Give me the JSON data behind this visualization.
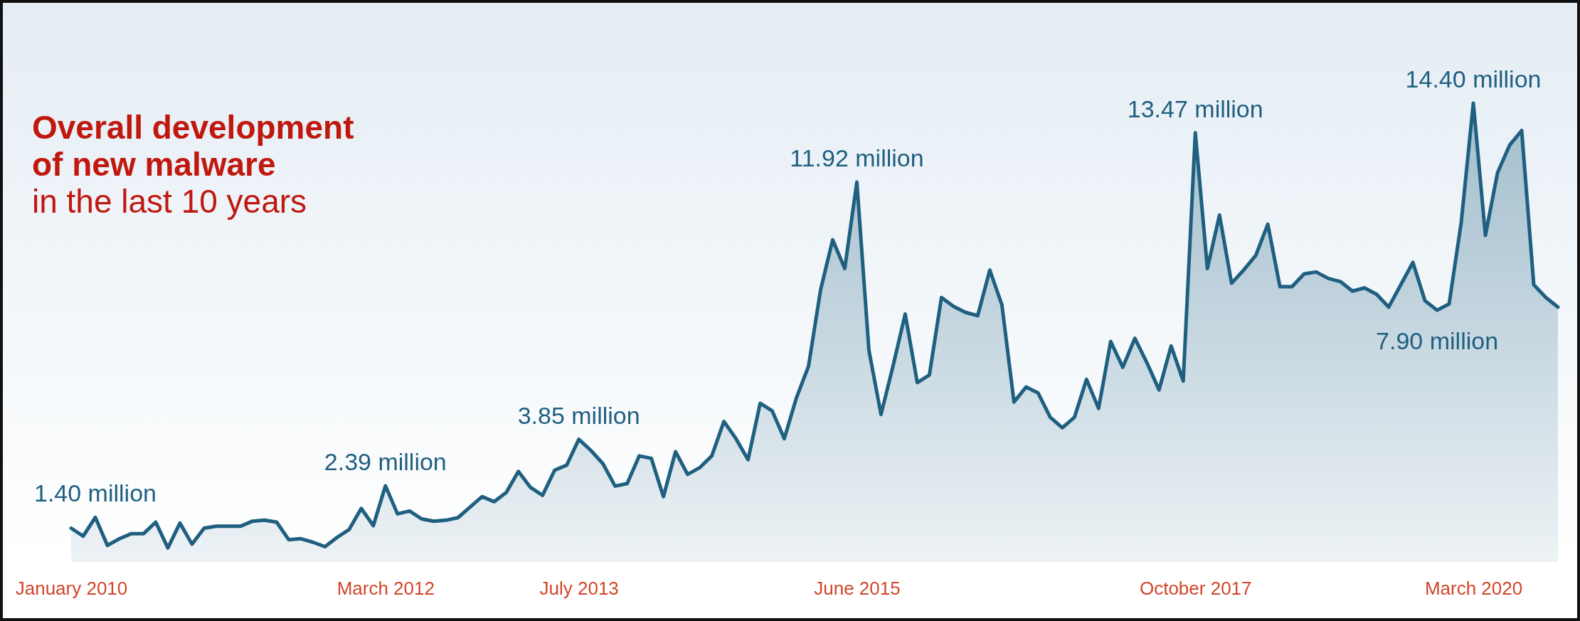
{
  "chart_data": {
    "type": "area",
    "title": "Overall development of new malware",
    "subtitle": "in the last 10 years",
    "categories": [
      "January 2010",
      null,
      null,
      null,
      null,
      null,
      null,
      null,
      null,
      null,
      null,
      null,
      null,
      null,
      null,
      null,
      null,
      null,
      null,
      null,
      null,
      null,
      null,
      null,
      null,
      null,
      "March 2012",
      null,
      null,
      null,
      null,
      null,
      null,
      null,
      null,
      null,
      null,
      null,
      null,
      null,
      null,
      null,
      "July 2013",
      null,
      null,
      null,
      null,
      null,
      null,
      null,
      null,
      null,
      null,
      null,
      null,
      null,
      null,
      null,
      null,
      null,
      null,
      null,
      null,
      null,
      null,
      "June 2015",
      null,
      null,
      null,
      null,
      null,
      null,
      null,
      null,
      null,
      null,
      null,
      null,
      null,
      null,
      null,
      null,
      null,
      null,
      null,
      null,
      null,
      null,
      null,
      null,
      null,
      null,
      null,
      "October 2017",
      null,
      null,
      null,
      null,
      null,
      null,
      null,
      null,
      null,
      null,
      null,
      null,
      null,
      null,
      null,
      null,
      null,
      null,
      null,
      null,
      null,
      null,
      "March 2020",
      null,
      null,
      null,
      null,
      null,
      null,
      null
    ],
    "series": [
      {
        "color": "#1f5f80",
        "values": [
          1.06,
          0.81,
          1.4,
          0.52,
          0.73,
          0.89,
          0.89,
          1.25,
          0.44,
          1.22,
          0.56,
          1.06,
          1.12,
          1.12,
          1.12,
          1.28,
          1.31,
          1.25,
          0.7,
          0.73,
          0.62,
          0.48,
          0.77,
          1.02,
          1.68,
          1.14,
          2.39,
          1.51,
          1.6,
          1.35,
          1.28,
          1.31,
          1.39,
          1.72,
          2.05,
          1.89,
          2.18,
          2.84,
          2.34,
          2.09,
          2.88,
          3.04,
          3.85,
          3.5,
          3.08,
          2.38,
          2.46,
          3.33,
          3.25,
          2.05,
          3.46,
          2.75,
          2.96,
          3.33,
          4.41,
          3.87,
          3.21,
          4.98,
          4.74,
          3.87,
          5.15,
          6.14,
          8.54,
          10.11,
          9.21,
          11.92,
          6.64,
          4.63,
          6.16,
          7.78,
          5.63,
          5.87,
          8.3,
          8.02,
          7.83,
          7.73,
          9.16,
          8.07,
          5.02,
          5.49,
          5.3,
          4.54,
          4.21,
          4.54,
          5.73,
          4.82,
          6.92,
          6.11,
          7.02,
          6.25,
          5.4,
          6.78,
          5.68,
          13.47,
          9.21,
          10.89,
          8.75,
          9.16,
          9.62,
          10.6,
          8.64,
          8.64,
          9.04,
          9.1,
          8.9,
          8.8,
          8.5,
          8.6,
          8.4,
          8.0,
          8.7,
          9.4,
          8.2,
          7.9,
          8.1,
          10.66,
          14.4,
          10.25,
          12.21,
          13.08,
          13.54,
          8.7,
          8.3,
          8.0
        ],
        "value_labels": [
          null,
          null,
          "1.40 million",
          null,
          null,
          null,
          null,
          null,
          null,
          null,
          null,
          null,
          null,
          null,
          null,
          null,
          null,
          null,
          null,
          null,
          null,
          null,
          null,
          null,
          null,
          null,
          "2.39 million",
          null,
          null,
          null,
          null,
          null,
          null,
          null,
          null,
          null,
          null,
          null,
          null,
          null,
          null,
          null,
          "3.85 million",
          null,
          null,
          null,
          null,
          null,
          null,
          null,
          null,
          null,
          null,
          null,
          null,
          null,
          null,
          null,
          null,
          null,
          null,
          null,
          null,
          null,
          null,
          "11.92 million",
          null,
          null,
          null,
          null,
          null,
          null,
          null,
          null,
          null,
          null,
          null,
          null,
          null,
          null,
          null,
          null,
          null,
          null,
          null,
          null,
          null,
          null,
          null,
          null,
          null,
          null,
          null,
          "13.47 million",
          null,
          null,
          null,
          null,
          null,
          null,
          null,
          null,
          null,
          null,
          null,
          null,
          null,
          null,
          null,
          null,
          null,
          null,
          null,
          "7.90 million",
          null,
          null,
          "14.40 million",
          null,
          null,
          null,
          null,
          null,
          null,
          null
        ]
      }
    ]
  }
}
